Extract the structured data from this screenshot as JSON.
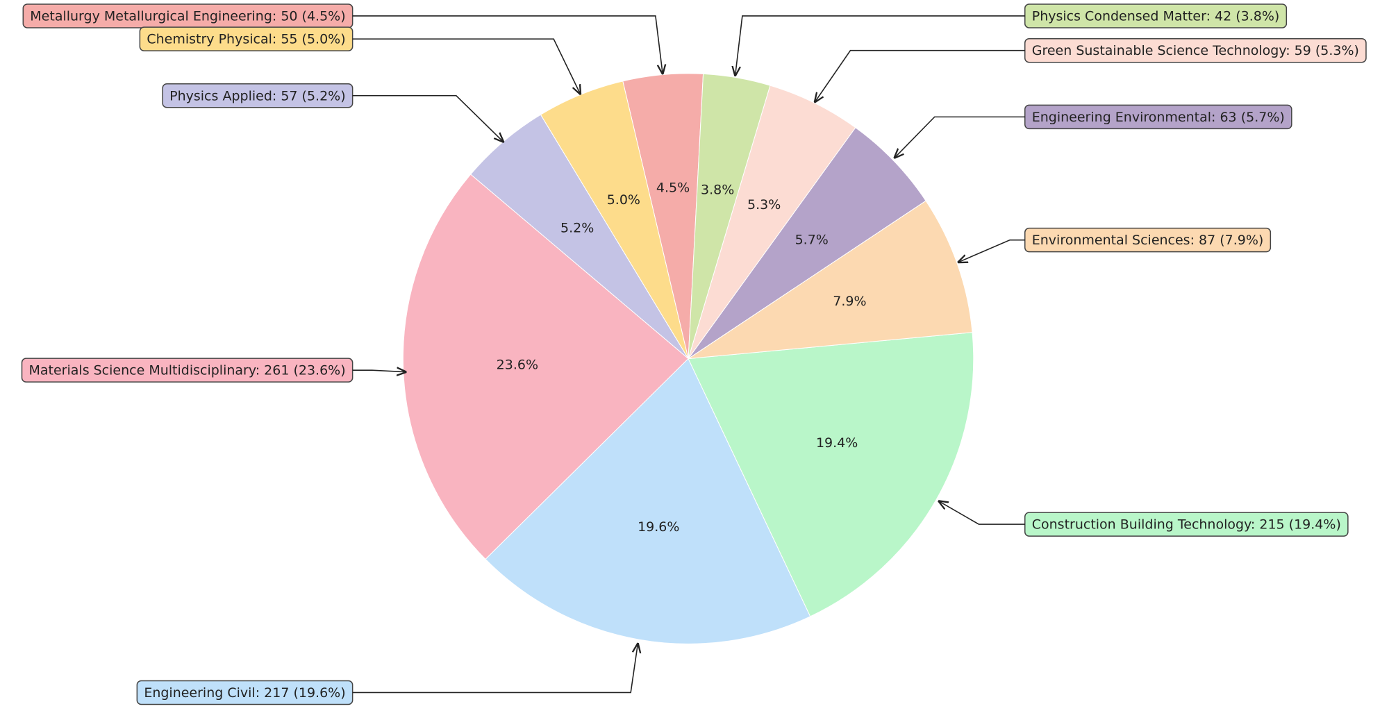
{
  "chart_data": {
    "type": "pie",
    "values": [
      50,
      55,
      57,
      261,
      217,
      215,
      87,
      63,
      59,
      42
    ],
    "value_labels": [
      "Metallurgy Metallurgical Engineering: 50 (4.5%)",
      "Chemistry Physical: 55 (5.0%)",
      "Physics Applied: 57 (5.2%)",
      "Materials Science Multidisciplinary: 261 (23.6%)",
      "Engineering Civil: 217 (19.6%)",
      "Construction Building Technology: 215 (19.4%)",
      "Environmental Sciences: 87 (7.9%)",
      "Engineering Environmental: 63 (5.7%)",
      "Green Sustainable Science Technology: 59 (5.3%)",
      "Physics Condensed Matter: 42 (3.8%)"
    ],
    "percent_labels": [
      "4.5%",
      "5.0%",
      "5.2%",
      "23.6%",
      "19.6%",
      "19.4%",
      "7.9%",
      "5.7%",
      "5.3%",
      "3.8%"
    ],
    "colors": [
      "#f5aca9",
      "#fddc8b",
      "#c4c3e5",
      "#f9b4c0",
      "#bfe0fa",
      "#b9f6c9",
      "#fcd9b1",
      "#b4a3c9",
      "#fcdcd3",
      "#cfe5a8"
    ]
  }
}
